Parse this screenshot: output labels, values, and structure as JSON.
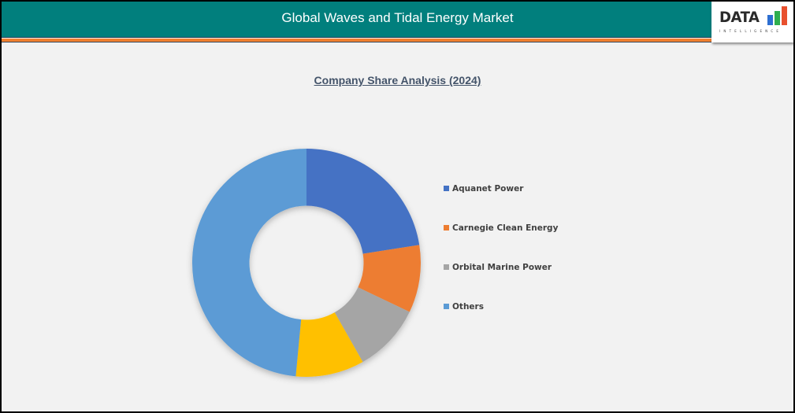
{
  "header": {
    "title": "Global Waves and Tidal Energy Market",
    "colors": {
      "background": "#017f7d",
      "stripe": "#f07f2f"
    }
  },
  "logo": {
    "text": "DATA",
    "subtext": "INTELLIGENCE",
    "bar_colors": [
      "#2e6fd1",
      "#2fae4e",
      "#e8502e"
    ]
  },
  "chart_data": {
    "type": "pie",
    "subtype": "donut",
    "title": "Company Share Analysis (2024)",
    "categories": [
      "Aquanet Power",
      "Carnegie Clean Energy",
      "Orbital Marine Power",
      "Unlabeled",
      "Others"
    ],
    "values": [
      22.5,
      9.6,
      9.7,
      9.7,
      48.5
    ],
    "unit": "%",
    "colors": [
      "#4472c4",
      "#ed7d31",
      "#a5a5a5",
      "#ffc000",
      "#5b9bd5"
    ],
    "legend": {
      "position": "right",
      "entries": [
        {
          "label": "Aquanet Power",
          "color": "#4472c4"
        },
        {
          "label": "Carnegie Clean Energy",
          "color": "#ed7d31"
        },
        {
          "label": "Orbital Marine Power",
          "color": "#a5a5a5"
        },
        {
          "label": "Others",
          "color": "#5b9bd5"
        }
      ]
    },
    "start_angle_deg": 0,
    "direction": "clockwise",
    "hole_ratio": 0.5,
    "data_labels": false
  }
}
